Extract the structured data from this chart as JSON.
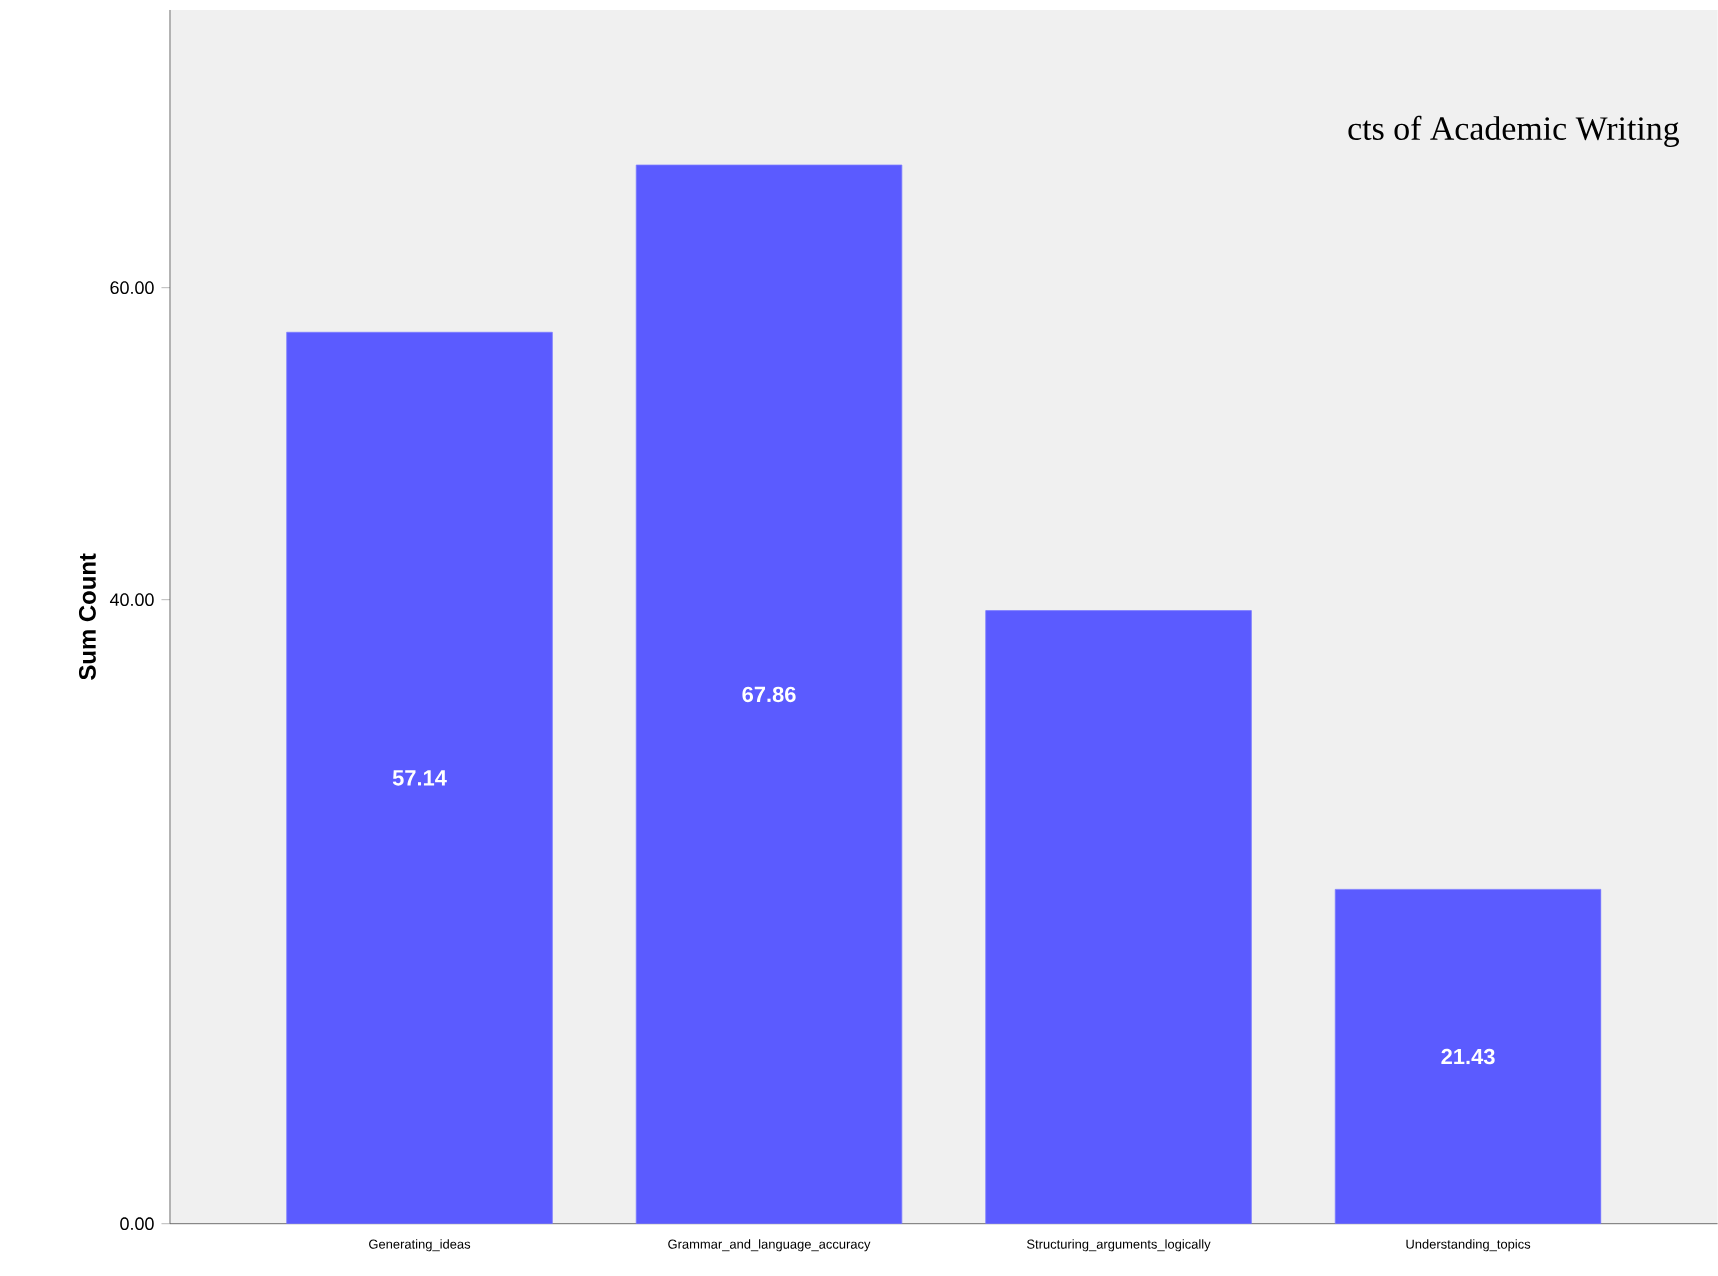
{
  "chart_data": {
    "type": "bar",
    "ylabel": "Sum Count",
    "categories": [
      "Generating_ideas",
      "Grammar_and_language_accuracy",
      "Structuring_arguments_logically",
      "Understanding_topics"
    ],
    "values": [
      57.14,
      67.86,
      39.3,
      21.43
    ],
    "value_labels": [
      "57.14",
      "67.86",
      null,
      "21.43"
    ],
    "color": "#5b5bff",
    "ylim": [
      0,
      77.8
    ],
    "yticks": [
      {
        "value": 0,
        "label": "0.00"
      },
      {
        "value": 40,
        "label": "40.00"
      },
      {
        "value": 60,
        "label": "60.00"
      }
    ],
    "annotations": [
      "cts of Academic Writing"
    ]
  }
}
